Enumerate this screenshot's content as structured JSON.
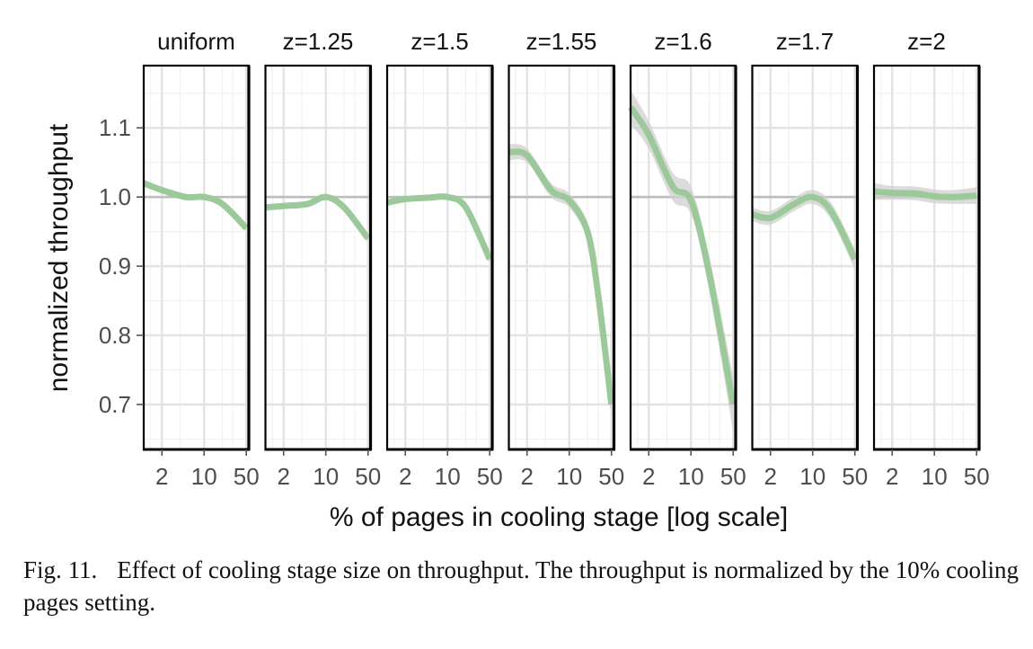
{
  "chart_data": {
    "type": "line",
    "scale_x": "log",
    "xlabel": "% of pages in cooling stage [log scale]",
    "ylabel": "normalized throughput",
    "x_ticks": [
      2,
      10,
      50
    ],
    "xlim": [
      1,
      55
    ],
    "y_ticks": [
      0.7,
      0.8,
      0.9,
      1.0,
      1.1
    ],
    "y_tick_labels": [
      "0.7",
      "0.8",
      "0.9",
      "1.0",
      "1.1"
    ],
    "ylim": [
      0.635,
      1.19
    ],
    "reference_line": 1.0,
    "grid": true,
    "line_color": "#9cc99a",
    "ribbon_color": "#cfcfcf",
    "reference_color": "#bdbdbd",
    "panels": [
      {
        "title": "uniform",
        "x": [
          1,
          2,
          5,
          10,
          20,
          50
        ],
        "y": [
          1.02,
          1.01,
          1.0,
          1.0,
          0.99,
          0.955
        ],
        "ci": [
          0.003,
          0.003,
          0.003,
          0.003,
          0.003,
          0.004
        ]
      },
      {
        "title": "z=1.25",
        "x": [
          1,
          2,
          5,
          10,
          20,
          50
        ],
        "y": [
          0.985,
          0.987,
          0.99,
          1.0,
          0.985,
          0.94
        ],
        "ci": [
          0.003,
          0.003,
          0.003,
          0.003,
          0.004,
          0.005
        ]
      },
      {
        "title": "z=1.5",
        "x": [
          1,
          2,
          5,
          10,
          20,
          50
        ],
        "y": [
          0.992,
          0.997,
          0.999,
          1.0,
          0.985,
          0.91
        ],
        "ci": [
          0.003,
          0.003,
          0.003,
          0.003,
          0.004,
          0.005
        ]
      },
      {
        "title": "z=1.55",
        "x": [
          1,
          2,
          5,
          10,
          20,
          30,
          50
        ],
        "y": [
          1.065,
          1.06,
          1.01,
          0.995,
          0.95,
          0.86,
          0.7
        ],
        "ci": [
          0.012,
          0.01,
          0.01,
          0.01,
          0.012,
          0.015,
          0.02
        ]
      },
      {
        "title": "z=1.6",
        "x": [
          1,
          2,
          5,
          10,
          20,
          50
        ],
        "y": [
          1.13,
          1.09,
          1.015,
          0.995,
          0.89,
          0.7
        ],
        "ci": [
          0.025,
          0.02,
          0.02,
          0.02,
          0.025,
          0.04
        ]
      },
      {
        "title": "z=1.7",
        "x": [
          1,
          2,
          5,
          10,
          20,
          50
        ],
        "y": [
          0.975,
          0.97,
          0.99,
          1.0,
          0.98,
          0.91
        ],
        "ci": [
          0.01,
          0.01,
          0.01,
          0.01,
          0.012,
          0.015
        ]
      },
      {
        "title": "z=2",
        "x": [
          1,
          2,
          5,
          10,
          20,
          50
        ],
        "y": [
          1.008,
          1.006,
          1.005,
          1.001,
          1.0,
          1.002
        ],
        "ci": [
          0.012,
          0.01,
          0.01,
          0.01,
          0.01,
          0.012
        ]
      }
    ]
  },
  "caption": {
    "label": "Fig. 11.",
    "text": "Effect of cooling stage size on throughput. The throughput is normalized by the 10% cooling pages setting."
  }
}
